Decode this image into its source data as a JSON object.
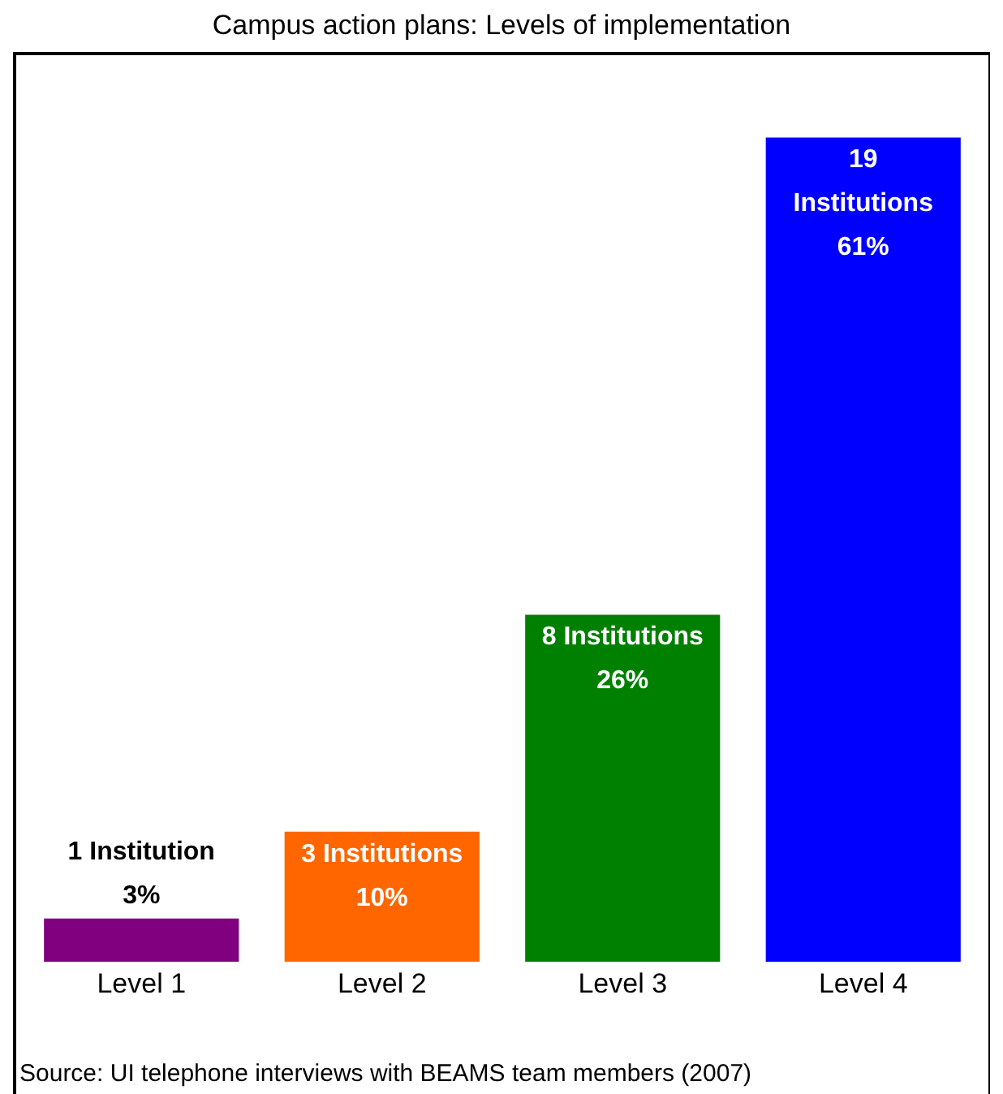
{
  "chart_data": {
    "type": "bar",
    "title": "Campus action plans: Levels of implementation",
    "categories": [
      "Level 1",
      "Level 2",
      "Level 3",
      "Level 4"
    ],
    "values": [
      1,
      3,
      8,
      19
    ],
    "colors": [
      "#800080",
      "#ff6600",
      "#008000",
      "#0000ff"
    ],
    "value_labels": [
      "1 Institution\n3%",
      "3 Institutions\n10%",
      "8 Institutions\n26%",
      "19\nInstitutions\n61%"
    ],
    "annotations": [
      "Source: UI telephone interviews with BEAMS team members (2007)"
    ],
    "grid": false,
    "legend": false
  }
}
